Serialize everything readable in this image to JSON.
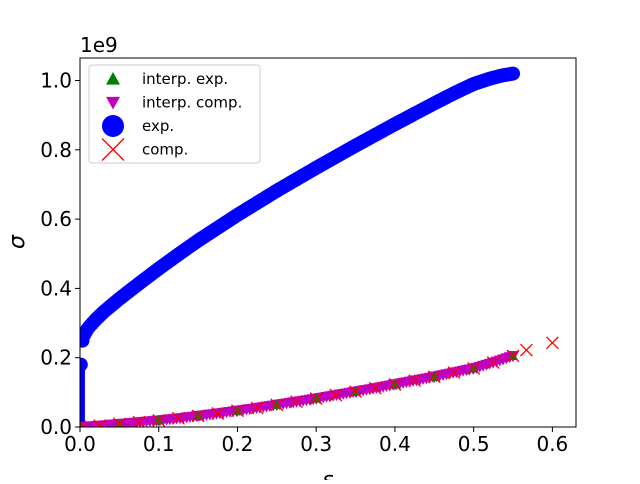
{
  "chart_data": {
    "type": "scatter",
    "title": "",
    "xlabel": "ε",
    "ylabel": "σ",
    "y_offset_text": "1e9",
    "xlim": [
      0.0,
      0.63
    ],
    "ylim": [
      0.0,
      1.065
    ],
    "xticks": [
      0.0,
      0.1,
      0.2,
      0.3,
      0.4,
      0.5,
      0.6
    ],
    "xtick_labels": [
      "0.0",
      "0.1",
      "0.2",
      "0.3",
      "0.4",
      "0.5",
      "0.6"
    ],
    "yticks": [
      0.0,
      0.2,
      0.4,
      0.6,
      0.8,
      1.0
    ],
    "ytick_labels": [
      "0.0",
      "0.2",
      "0.4",
      "0.6",
      "0.8",
      "1.0"
    ],
    "grid": false,
    "legend_position": "upper-left",
    "series": [
      {
        "name": "interp. exp.",
        "marker": "triangle-up",
        "color": "#008000",
        "x": [
          0.0,
          0.05,
          0.1,
          0.15,
          0.2,
          0.25,
          0.3,
          0.35,
          0.4,
          0.45,
          0.5,
          0.55
        ],
        "y": [
          0.0,
          0.009,
          0.019,
          0.032,
          0.047,
          0.064,
          0.082,
          0.102,
          0.123,
          0.145,
          0.169,
          0.205
        ]
      },
      {
        "name": "interp. comp.",
        "marker": "triangle-down",
        "color": "#bf00bf",
        "x": [
          0.0,
          0.025,
          0.05,
          0.075,
          0.1,
          0.125,
          0.15,
          0.175,
          0.2,
          0.225,
          0.25,
          0.275,
          0.3,
          0.325,
          0.35,
          0.375,
          0.4,
          0.425,
          0.45,
          0.475,
          0.5,
          0.525,
          0.55
        ],
        "y": [
          0.0,
          0.004,
          0.009,
          0.014,
          0.019,
          0.025,
          0.032,
          0.039,
          0.047,
          0.055,
          0.064,
          0.073,
          0.082,
          0.092,
          0.102,
          0.112,
          0.123,
          0.134,
          0.145,
          0.157,
          0.169,
          0.186,
          0.205
        ]
      },
      {
        "name": "exp.",
        "marker": "circle",
        "color": "#0000ff",
        "x": [
          0.0,
          0.0005,
          0.001,
          0.002,
          0.005,
          0.01,
          0.02,
          0.03,
          0.05,
          0.075,
          0.1,
          0.125,
          0.15,
          0.175,
          0.2,
          0.225,
          0.25,
          0.275,
          0.3,
          0.325,
          0.35,
          0.375,
          0.4,
          0.425,
          0.45,
          0.475,
          0.5,
          0.52,
          0.535,
          0.545,
          0.55
        ],
        "y": [
          0.0,
          0.08,
          0.18,
          0.24,
          0.265,
          0.285,
          0.31,
          0.332,
          0.37,
          0.414,
          0.457,
          0.498,
          0.538,
          0.575,
          0.612,
          0.647,
          0.682,
          0.715,
          0.748,
          0.78,
          0.812,
          0.843,
          0.874,
          0.904,
          0.934,
          0.963,
          0.99,
          1.005,
          1.014,
          1.018,
          1.02
        ]
      },
      {
        "name": "comp.",
        "marker": "x",
        "color": "#ff0000",
        "x": [
          0.0,
          0.025,
          0.05,
          0.075,
          0.1,
          0.125,
          0.15,
          0.175,
          0.2,
          0.225,
          0.25,
          0.275,
          0.3,
          0.325,
          0.35,
          0.375,
          0.4,
          0.425,
          0.45,
          0.475,
          0.5,
          0.525,
          0.55,
          0.567,
          0.6
        ],
        "y": [
          0.0,
          0.004,
          0.009,
          0.014,
          0.019,
          0.025,
          0.032,
          0.039,
          0.047,
          0.055,
          0.064,
          0.073,
          0.082,
          0.092,
          0.102,
          0.112,
          0.123,
          0.134,
          0.145,
          0.157,
          0.169,
          0.186,
          0.205,
          0.222,
          0.243
        ]
      }
    ]
  },
  "colors": {
    "interp_exp": "#008000",
    "interp_comp": "#bf00bf",
    "exp": "#0000ff",
    "comp": "#ff0000"
  }
}
